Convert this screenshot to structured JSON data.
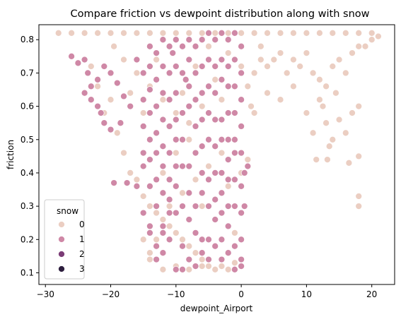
{
  "chart_data": {
    "type": "scatter",
    "title": "Compare friction vs dewpoint distribution along with snow",
    "xlabel": "dewpoint_Airport",
    "ylabel": "friction",
    "xlim": [
      -31,
      23.5
    ],
    "ylim": [
      0.065,
      0.845
    ],
    "x_ticks": [
      -30,
      -20,
      -10,
      0,
      10,
      20
    ],
    "y_ticks": [
      0.1,
      0.2,
      0.3,
      0.4,
      0.5,
      0.6,
      0.7,
      0.8
    ],
    "grid": false,
    "legend": {
      "title": "snow",
      "placement": "lower-left",
      "entries": [
        {
          "label": "0",
          "color": "#ebcec2"
        },
        {
          "label": "1",
          "color": "#cf88a6"
        },
        {
          "label": "2",
          "color": "#7b3c76"
        },
        {
          "label": "3",
          "color": "#2d1e3e"
        }
      ]
    },
    "series": [
      {
        "name": "0",
        "color": "#ebcec2",
        "points": [
          [
            -28,
            0.82
          ],
          [
            -26,
            0.82
          ],
          [
            -24,
            0.82
          ],
          [
            -22,
            0.82
          ],
          [
            -20,
            0.82
          ],
          [
            -18,
            0.82
          ],
          [
            -16,
            0.82
          ],
          [
            -14,
            0.82
          ],
          [
            -12,
            0.82
          ],
          [
            -10,
            0.82
          ],
          [
            -8,
            0.82
          ],
          [
            -6,
            0.82
          ],
          [
            -4,
            0.82
          ],
          [
            -2,
            0.82
          ],
          [
            0,
            0.82
          ],
          [
            2,
            0.82
          ],
          [
            4,
            0.82
          ],
          [
            6,
            0.82
          ],
          [
            8,
            0.82
          ],
          [
            10,
            0.82
          ],
          [
            12,
            0.82
          ],
          [
            14,
            0.82
          ],
          [
            16,
            0.82
          ],
          [
            18,
            0.82
          ],
          [
            20,
            0.82
          ],
          [
            21,
            0.81
          ],
          [
            -19.5,
            0.78
          ],
          [
            -18,
            0.74
          ],
          [
            -16,
            0.7
          ],
          [
            -14,
            0.66
          ],
          [
            -12,
            0.62
          ],
          [
            -10,
            0.58
          ],
          [
            -8,
            0.55
          ],
          [
            -6,
            0.6
          ],
          [
            -4,
            0.68
          ],
          [
            -2,
            0.76
          ],
          [
            0,
            0.72
          ],
          [
            1,
            0.66
          ],
          [
            2,
            0.7
          ],
          [
            3,
            0.74
          ],
          [
            4,
            0.72
          ],
          [
            5,
            0.74
          ],
          [
            6,
            0.76
          ],
          [
            7,
            0.7
          ],
          [
            8,
            0.74
          ],
          [
            9,
            0.72
          ],
          [
            10,
            0.76
          ],
          [
            11,
            0.7
          ],
          [
            12,
            0.68
          ],
          [
            13,
            0.66
          ],
          [
            14,
            0.72
          ],
          [
            15,
            0.74
          ],
          [
            16,
            0.7
          ],
          [
            17,
            0.76
          ],
          [
            18,
            0.78
          ],
          [
            19,
            0.78
          ],
          [
            20,
            0.8
          ],
          [
            10,
            0.58
          ],
          [
            11,
            0.52
          ],
          [
            12,
            0.62
          ],
          [
            13,
            0.55
          ],
          [
            13.5,
            0.48
          ],
          [
            13.2,
            0.44
          ],
          [
            14,
            0.5
          ],
          [
            15,
            0.56
          ],
          [
            16,
            0.52
          ],
          [
            16.5,
            0.43
          ],
          [
            17,
            0.58
          ],
          [
            18,
            0.6
          ],
          [
            18,
            0.45
          ],
          [
            18,
            0.33
          ],
          [
            18,
            0.3
          ],
          [
            11.5,
            0.44
          ],
          [
            12.5,
            0.6
          ],
          [
            14.5,
            0.64
          ],
          [
            -20,
            0.62
          ],
          [
            -21,
            0.58
          ],
          [
            -19,
            0.52
          ],
          [
            -18,
            0.46
          ],
          [
            -17,
            0.4
          ],
          [
            -16,
            0.38
          ],
          [
            -15,
            0.33
          ],
          [
            -14,
            0.3
          ],
          [
            -13,
            0.28
          ],
          [
            -12,
            0.26
          ],
          [
            -11,
            0.24
          ],
          [
            -10,
            0.22
          ],
          [
            -9,
            0.2
          ],
          [
            -8,
            0.18
          ],
          [
            -7,
            0.16
          ],
          [
            -6,
            0.14
          ],
          [
            -5,
            0.12
          ],
          [
            -4,
            0.11
          ],
          [
            -3,
            0.12
          ],
          [
            -2,
            0.11
          ],
          [
            -1,
            0.13
          ],
          [
            -12,
            0.11
          ],
          [
            -10,
            0.12
          ],
          [
            -8,
            0.11
          ],
          [
            -6,
            0.12
          ],
          [
            -14,
            0.16
          ],
          [
            -13,
            0.2
          ],
          [
            -11,
            0.3
          ],
          [
            -9,
            0.34
          ],
          [
            -7,
            0.38
          ],
          [
            -5,
            0.42
          ],
          [
            -3,
            0.46
          ],
          [
            -1,
            0.5
          ],
          [
            1,
            0.44
          ],
          [
            1.5,
            0.6
          ],
          [
            -15,
            0.2
          ],
          [
            -14,
            0.14
          ],
          [
            -12,
            0.4
          ],
          [
            -10,
            0.46
          ],
          [
            -8,
            0.5
          ],
          [
            -6,
            0.3
          ],
          [
            -4,
            0.26
          ],
          [
            -2,
            0.36
          ],
          [
            0,
            0.4
          ],
          [
            -1,
            0.22
          ],
          [
            -9,
            0.64
          ],
          [
            -7,
            0.72
          ],
          [
            -5,
            0.78
          ],
          [
            -3,
            0.62
          ],
          [
            -11,
            0.7
          ],
          [
            -13,
            0.74
          ],
          [
            -15,
            0.58
          ],
          [
            -17,
            0.64
          ],
          [
            -22,
            0.66
          ],
          [
            -23,
            0.72
          ],
          [
            2,
            0.58
          ],
          [
            4,
            0.64
          ],
          [
            6,
            0.62
          ],
          [
            8,
            0.66
          ],
          [
            3,
            0.78
          ]
        ]
      },
      {
        "name": "1",
        "color": "#cf88a6",
        "points": [
          [
            -26,
            0.75
          ],
          [
            -25,
            0.73
          ],
          [
            -24,
            0.74
          ],
          [
            -23.5,
            0.7
          ],
          [
            -23,
            0.66
          ],
          [
            -24,
            0.64
          ],
          [
            -23,
            0.62
          ],
          [
            -22,
            0.6
          ],
          [
            -21.5,
            0.58
          ],
          [
            -21,
            0.55
          ],
          [
            -20,
            0.53
          ],
          [
            -22,
            0.68
          ],
          [
            -21,
            0.72
          ],
          [
            -20,
            0.7
          ],
          [
            -19,
            0.67
          ],
          [
            -18,
            0.63
          ],
          [
            -17,
            0.6
          ],
          [
            -18.5,
            0.55
          ],
          [
            -19.5,
            0.37
          ],
          [
            -17.5,
            0.37
          ],
          [
            -16,
            0.36
          ],
          [
            -16,
            0.74
          ],
          [
            -15,
            0.7
          ],
          [
            -15,
            0.62
          ],
          [
            -15,
            0.54
          ],
          [
            -15,
            0.46
          ],
          [
            -15,
            0.42
          ],
          [
            -15,
            0.28
          ],
          [
            -14,
            0.78
          ],
          [
            -14,
            0.72
          ],
          [
            -14,
            0.65
          ],
          [
            -14,
            0.58
          ],
          [
            -14,
            0.5
          ],
          [
            -14,
            0.44
          ],
          [
            -14,
            0.36
          ],
          [
            -14,
            0.24
          ],
          [
            -13,
            0.76
          ],
          [
            -13,
            0.68
          ],
          [
            -13,
            0.6
          ],
          [
            -13,
            0.52
          ],
          [
            -13,
            0.46
          ],
          [
            -13,
            0.38
          ],
          [
            -13,
            0.3
          ],
          [
            -13,
            0.18
          ],
          [
            -12,
            0.8
          ],
          [
            -12,
            0.72
          ],
          [
            -12,
            0.64
          ],
          [
            -12,
            0.56
          ],
          [
            -12,
            0.48
          ],
          [
            -12,
            0.42
          ],
          [
            -12,
            0.34
          ],
          [
            -12,
            0.24
          ],
          [
            -12,
            0.16
          ],
          [
            -11,
            0.78
          ],
          [
            -11,
            0.7
          ],
          [
            -11,
            0.62
          ],
          [
            -11,
            0.54
          ],
          [
            -11,
            0.46
          ],
          [
            -11,
            0.38
          ],
          [
            -11,
            0.32
          ],
          [
            -11,
            0.28
          ],
          [
            -10,
            0.8
          ],
          [
            -10,
            0.72
          ],
          [
            -10,
            0.64
          ],
          [
            -10,
            0.56
          ],
          [
            -10,
            0.5
          ],
          [
            -10,
            0.42
          ],
          [
            -10,
            0.36
          ],
          [
            -10,
            0.28
          ],
          [
            -10,
            0.11
          ],
          [
            -9,
            0.78
          ],
          [
            -9,
            0.7
          ],
          [
            -9,
            0.58
          ],
          [
            -9,
            0.5
          ],
          [
            -9,
            0.42
          ],
          [
            -9,
            0.3
          ],
          [
            -9,
            0.11
          ],
          [
            -8,
            0.8
          ],
          [
            -8,
            0.74
          ],
          [
            -8,
            0.66
          ],
          [
            -8,
            0.6
          ],
          [
            -8,
            0.42
          ],
          [
            -8,
            0.34
          ],
          [
            -8,
            0.26
          ],
          [
            -7,
            0.78
          ],
          [
            -7,
            0.7
          ],
          [
            -7,
            0.62
          ],
          [
            -7,
            0.54
          ],
          [
            -7,
            0.46
          ],
          [
            -7,
            0.3
          ],
          [
            -7,
            0.22
          ],
          [
            -7,
            0.12
          ],
          [
            -6,
            0.8
          ],
          [
            -6,
            0.72
          ],
          [
            -6,
            0.64
          ],
          [
            -6,
            0.56
          ],
          [
            -6,
            0.48
          ],
          [
            -6,
            0.4
          ],
          [
            -6,
            0.34
          ],
          [
            -6,
            0.2
          ],
          [
            -5,
            0.82
          ],
          [
            -5,
            0.74
          ],
          [
            -5,
            0.66
          ],
          [
            -5,
            0.58
          ],
          [
            -5,
            0.5
          ],
          [
            -5,
            0.38
          ],
          [
            -5,
            0.3
          ],
          [
            -5,
            0.2
          ],
          [
            -5,
            0.14
          ],
          [
            -4,
            0.8
          ],
          [
            -4,
            0.72
          ],
          [
            -4,
            0.64
          ],
          [
            -4,
            0.56
          ],
          [
            -4,
            0.48
          ],
          [
            -4,
            0.4
          ],
          [
            -4,
            0.32
          ],
          [
            -4,
            0.18
          ],
          [
            -3,
            0.82
          ],
          [
            -3,
            0.74
          ],
          [
            -3,
            0.68
          ],
          [
            -3,
            0.56
          ],
          [
            -3,
            0.5
          ],
          [
            -3,
            0.4
          ],
          [
            -3,
            0.34
          ],
          [
            -3,
            0.28
          ],
          [
            -3,
            0.2
          ],
          [
            -3,
            0.14
          ],
          [
            -2,
            0.8
          ],
          [
            -2,
            0.72
          ],
          [
            -2,
            0.66
          ],
          [
            -2,
            0.58
          ],
          [
            -2,
            0.5
          ],
          [
            -2,
            0.44
          ],
          [
            -2,
            0.3
          ],
          [
            -2,
            0.24
          ],
          [
            -2,
            0.16
          ],
          [
            -1,
            0.82
          ],
          [
            -1,
            0.74
          ],
          [
            -1,
            0.66
          ],
          [
            -1,
            0.58
          ],
          [
            -1,
            0.46
          ],
          [
            -1,
            0.38
          ],
          [
            -1,
            0.3
          ],
          [
            -1,
            0.18
          ],
          [
            -1,
            0.11
          ],
          [
            0,
            0.78
          ],
          [
            0,
            0.7
          ],
          [
            0,
            0.62
          ],
          [
            0,
            0.54
          ],
          [
            0,
            0.46
          ],
          [
            0,
            0.36
          ],
          [
            0,
            0.28
          ],
          [
            0,
            0.2
          ],
          [
            0,
            0.14
          ],
          [
            0.5,
            0.4
          ],
          [
            0.5,
            0.3
          ],
          [
            1,
            0.42
          ],
          [
            -14,
            0.22
          ],
          [
            -13,
            0.14
          ],
          [
            -12,
            0.22
          ],
          [
            -11,
            0.2
          ],
          [
            -9,
            0.18
          ],
          [
            -8,
            0.14
          ],
          [
            -6,
            0.16
          ],
          [
            -4,
            0.26
          ],
          [
            -2,
            0.38
          ],
          [
            -1,
            0.5
          ],
          [
            0,
            0.12
          ],
          [
            -10.5,
            0.76
          ],
          [
            -8.5,
            0.68
          ]
        ]
      }
    ]
  }
}
